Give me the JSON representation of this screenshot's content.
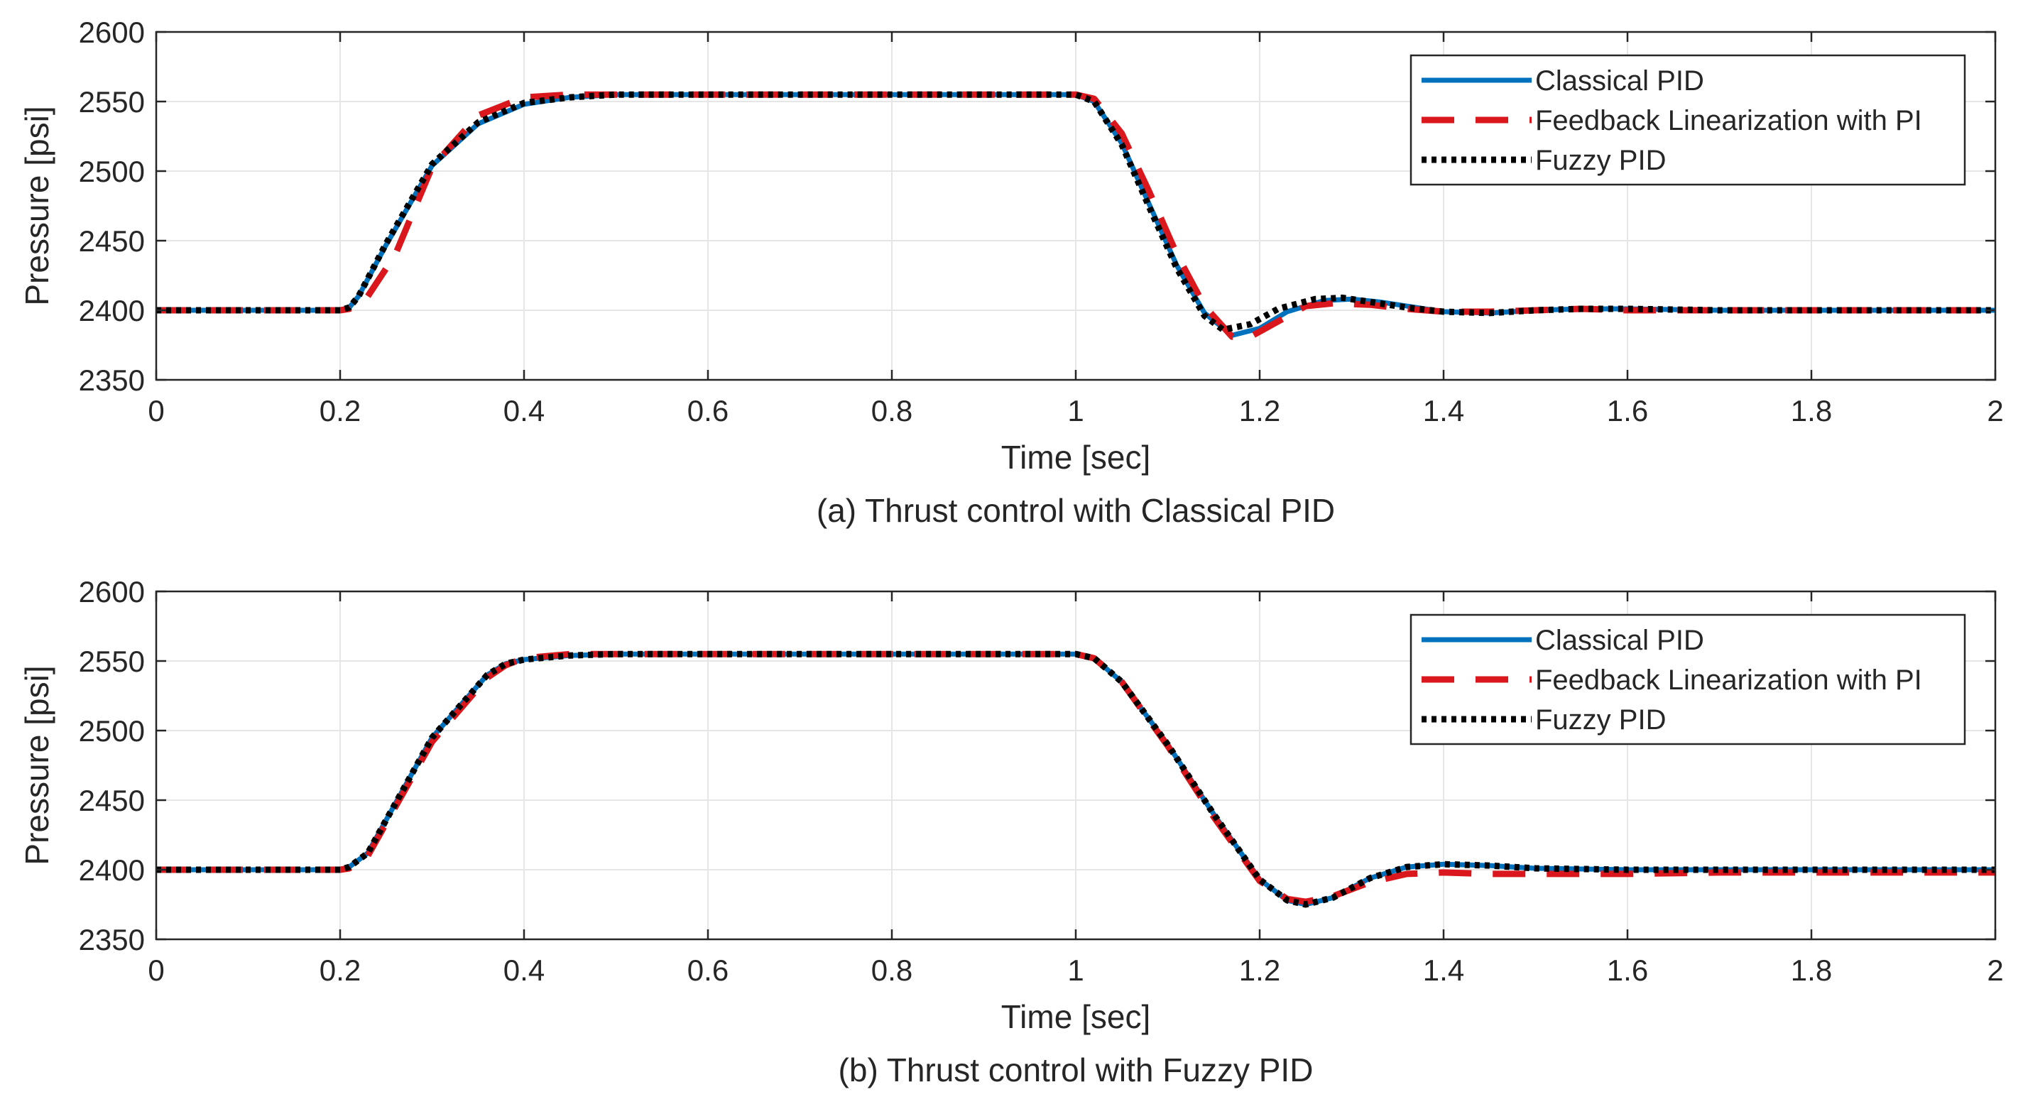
{
  "chart_data": [
    {
      "type": "line",
      "caption": "(a) Thrust control with Classical PID",
      "xlabel": "Time [sec]",
      "ylabel": "Pressure [psi]",
      "xlim": [
        0,
        2
      ],
      "ylim": [
        2350,
        2600
      ],
      "xticks": [
        0,
        0.2,
        0.4,
        0.6,
        0.8,
        1,
        1.2,
        1.4,
        1.6,
        1.8,
        2
      ],
      "xtick_labels": [
        "0",
        "0.2",
        "0.4",
        "0.6",
        "0.8",
        "1",
        "1.2",
        "1.4",
        "1.6",
        "1.8",
        "2"
      ],
      "yticks": [
        2350,
        2400,
        2450,
        2500,
        2550,
        2600
      ],
      "ytick_labels": [
        "2350",
        "2400",
        "2450",
        "2500",
        "2550",
        "2600"
      ],
      "grid": true,
      "legend_position": "top-right",
      "series": [
        {
          "name": "Classical PID",
          "color": "#0072BD",
          "style": "solid",
          "x": [
            0,
            0.2,
            0.21,
            0.22,
            0.25,
            0.3,
            0.35,
            0.4,
            0.45,
            0.5,
            0.6,
            0.8,
            1.0,
            1.02,
            1.05,
            1.08,
            1.11,
            1.14,
            1.17,
            1.2,
            1.23,
            1.27,
            1.3,
            1.33,
            1.37,
            1.4,
            1.45,
            1.5,
            1.55,
            1.6,
            1.7,
            1.8,
            1.9,
            2.0
          ],
          "y": [
            2400,
            2400,
            2402,
            2410,
            2447,
            2504,
            2534,
            2548,
            2553,
            2555,
            2555,
            2555,
            2555,
            2550,
            2520,
            2476,
            2432,
            2398,
            2382,
            2387,
            2399,
            2407,
            2408,
            2406,
            2402,
            2399,
            2398,
            2400,
            2401,
            2401,
            2400,
            2400,
            2400,
            2400
          ]
        },
        {
          "name": "Feedback Linearization with PI",
          "color": "#D9171C",
          "style": "dashed",
          "x": [
            0,
            0.2,
            0.21,
            0.22,
            0.23,
            0.26,
            0.3,
            0.35,
            0.4,
            0.45,
            0.5,
            0.6,
            0.8,
            1.0,
            1.02,
            1.05,
            1.08,
            1.11,
            1.14,
            1.17,
            1.19,
            1.22,
            1.25,
            1.28,
            1.32,
            1.36,
            1.4,
            1.45,
            1.5,
            1.55,
            1.6,
            1.7,
            1.8,
            1.9,
            2.0
          ],
          "y": [
            2400,
            2400,
            2401,
            2404,
            2410,
            2440,
            2503,
            2540,
            2553,
            2555,
            2555,
            2555,
            2555,
            2555,
            2552,
            2527,
            2485,
            2440,
            2403,
            2381,
            2381,
            2392,
            2403,
            2405,
            2404,
            2401,
            2399,
            2399,
            2400,
            2401,
            2400,
            2400,
            2400,
            2400,
            2400
          ]
        },
        {
          "name": "Fuzzy PID",
          "color": "#000000",
          "style": "dotted",
          "x": [
            0,
            0.2,
            0.21,
            0.22,
            0.25,
            0.3,
            0.35,
            0.4,
            0.45,
            0.5,
            0.6,
            0.8,
            1.0,
            1.02,
            1.05,
            1.08,
            1.11,
            1.14,
            1.16,
            1.19,
            1.22,
            1.26,
            1.29,
            1.32,
            1.36,
            1.4,
            1.45,
            1.5,
            1.55,
            1.6,
            1.7,
            1.8,
            1.9,
            2.0
          ],
          "y": [
            2400,
            2400,
            2402,
            2410,
            2448,
            2505,
            2535,
            2549,
            2553,
            2555,
            2555,
            2555,
            2555,
            2550,
            2519,
            2474,
            2430,
            2396,
            2386,
            2390,
            2401,
            2408,
            2409,
            2406,
            2402,
            2399,
            2398,
            2400,
            2401,
            2401,
            2400,
            2400,
            2400,
            2400
          ]
        }
      ]
    },
    {
      "type": "line",
      "caption": "(b) Thrust control with Fuzzy PID",
      "xlabel": "Time [sec]",
      "ylabel": "Pressure [psi]",
      "xlim": [
        0,
        2
      ],
      "ylim": [
        2350,
        2600
      ],
      "xticks": [
        0,
        0.2,
        0.4,
        0.6,
        0.8,
        1,
        1.2,
        1.4,
        1.6,
        1.8,
        2
      ],
      "xtick_labels": [
        "0",
        "0.2",
        "0.4",
        "0.6",
        "0.8",
        "1",
        "1.2",
        "1.4",
        "1.6",
        "1.8",
        "2"
      ],
      "yticks": [
        2350,
        2400,
        2450,
        2500,
        2550,
        2600
      ],
      "ytick_labels": [
        "2350",
        "2400",
        "2450",
        "2500",
        "2550",
        "2600"
      ],
      "grid": true,
      "legend_position": "top-right",
      "series": [
        {
          "name": "Classical PID",
          "color": "#0072BD",
          "style": "solid",
          "x": [
            0,
            0.2,
            0.21,
            0.23,
            0.3,
            0.36,
            0.38,
            0.4,
            0.45,
            0.5,
            0.6,
            0.8,
            1.0,
            1.02,
            1.05,
            1.1,
            1.15,
            1.2,
            1.23,
            1.25,
            1.28,
            1.32,
            1.36,
            1.4,
            1.45,
            1.5,
            1.6,
            1.7,
            1.8,
            1.9,
            2.0
          ],
          "y": [
            2400,
            2400,
            2402,
            2412,
            2495,
            2540,
            2548,
            2551,
            2554,
            2555,
            2555,
            2555,
            2555,
            2552,
            2535,
            2490,
            2440,
            2393,
            2378,
            2375,
            2380,
            2394,
            2402,
            2404,
            2403,
            2401,
            2400,
            2400,
            2400,
            2400,
            2400
          ]
        },
        {
          "name": "Feedback Linearization with PI",
          "color": "#D9171C",
          "style": "dashed",
          "x": [
            0,
            0.2,
            0.21,
            0.23,
            0.3,
            0.36,
            0.38,
            0.4,
            0.45,
            0.5,
            0.6,
            0.8,
            1.0,
            1.02,
            1.05,
            1.1,
            1.15,
            1.2,
            1.23,
            1.25,
            1.28,
            1.32,
            1.36,
            1.4,
            1.45,
            1.5,
            1.6,
            1.7,
            1.8,
            1.9,
            2.0
          ],
          "y": [
            2400,
            2400,
            2401,
            2410,
            2492,
            2538,
            2547,
            2552,
            2555,
            2555,
            2555,
            2555,
            2555,
            2552,
            2535,
            2489,
            2438,
            2392,
            2379,
            2377,
            2381,
            2391,
            2397,
            2398,
            2397,
            2397,
            2397,
            2398,
            2398,
            2398,
            2398
          ]
        },
        {
          "name": "Fuzzy PID",
          "color": "#000000",
          "style": "dotted",
          "x": [
            0,
            0.2,
            0.21,
            0.23,
            0.3,
            0.36,
            0.38,
            0.4,
            0.45,
            0.5,
            0.6,
            0.8,
            1.0,
            1.02,
            1.05,
            1.1,
            1.15,
            1.2,
            1.23,
            1.25,
            1.28,
            1.32,
            1.36,
            1.4,
            1.45,
            1.5,
            1.6,
            1.7,
            1.8,
            1.9,
            2.0
          ],
          "y": [
            2400,
            2400,
            2402,
            2412,
            2495,
            2540,
            2548,
            2551,
            2554,
            2555,
            2555,
            2555,
            2555,
            2552,
            2535,
            2490,
            2440,
            2393,
            2378,
            2375,
            2380,
            2394,
            2402,
            2404,
            2403,
            2401,
            2400,
            2400,
            2400,
            2400,
            2400
          ]
        }
      ]
    }
  ]
}
